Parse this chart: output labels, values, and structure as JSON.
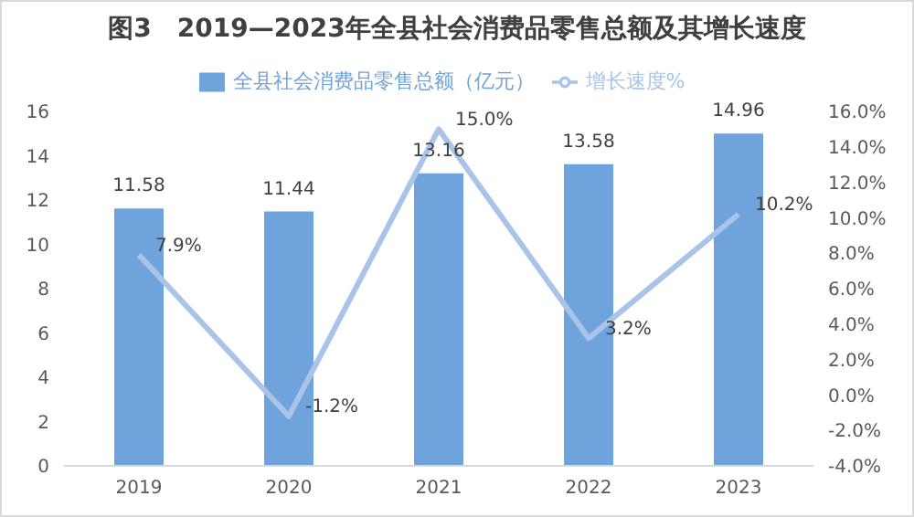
{
  "chart_data": {
    "type": "bar",
    "title": "图3　2019—2023年全县社会消费品零售总额及其增长速度",
    "categories": [
      "2019",
      "2020",
      "2021",
      "2022",
      "2023"
    ],
    "series": [
      {
        "name": "全县社会消费品零售总额（亿元）",
        "color": "#6fa3db",
        "values": [
          11.58,
          11.44,
          13.16,
          13.58,
          14.96
        ],
        "value_labels": [
          "11.58",
          "11.44",
          "13.16",
          "13.58",
          "14.96"
        ]
      },
      {
        "name": "增长速度%",
        "type": "line",
        "axis": "y2",
        "color": "#a9c4e8",
        "values": [
          7.9,
          -1.2,
          15.0,
          3.2,
          10.2
        ],
        "value_labels": [
          "7.9%",
          "-1.2%",
          "15.0%",
          "3.2%",
          "10.2%"
        ]
      }
    ],
    "ylim": [
      0,
      16
    ],
    "yticks": [
      0,
      2,
      4,
      6,
      8,
      10,
      12,
      14,
      16
    ],
    "y2lim": [
      -4,
      16
    ],
    "y2ticks": [
      {
        "value": -4,
        "label": "-4.0%"
      },
      {
        "value": -2,
        "label": "-2.0%"
      },
      {
        "value": 0,
        "label": "0.0%"
      },
      {
        "value": 2,
        "label": "2.0%"
      },
      {
        "value": 4,
        "label": "4.0%"
      },
      {
        "value": 6,
        "label": "6.0%"
      },
      {
        "value": 8,
        "label": "8.0%"
      },
      {
        "value": 10,
        "label": "10.0%"
      },
      {
        "value": 12,
        "label": "12.0%"
      },
      {
        "value": 14,
        "label": "14.0%"
      },
      {
        "value": 16,
        "label": "16.0%"
      }
    ],
    "legend": "top",
    "grid": false,
    "marker": "none"
  }
}
